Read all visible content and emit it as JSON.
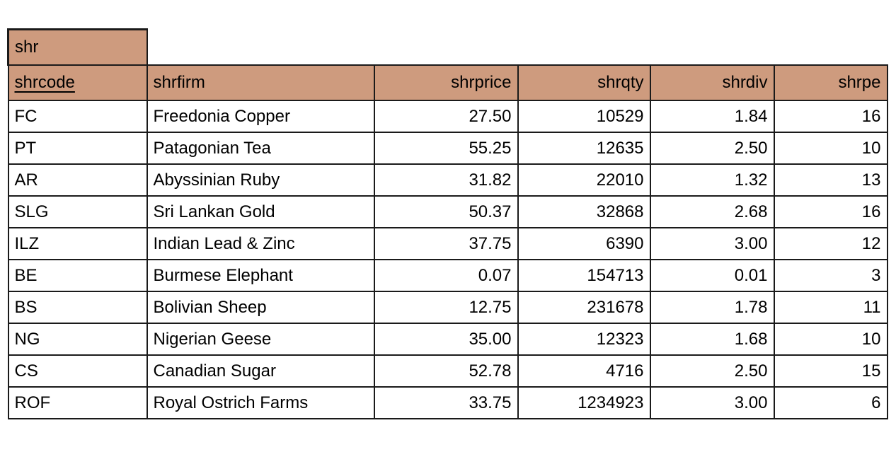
{
  "table": {
    "name": "shr",
    "header_fill": "#ce9b7e",
    "border_color": "#1a1a1a",
    "columns": [
      {
        "key": "shrcode",
        "label": "shrcode",
        "align": "left",
        "primary_key": true
      },
      {
        "key": "shrfirm",
        "label": "shrfirm",
        "align": "left",
        "primary_key": false
      },
      {
        "key": "shrprice",
        "label": "shrprice",
        "align": "right",
        "primary_key": false
      },
      {
        "key": "shrqty",
        "label": "shrqty",
        "align": "right",
        "primary_key": false
      },
      {
        "key": "shrdiv",
        "label": "shrdiv",
        "align": "right",
        "primary_key": false
      },
      {
        "key": "shrpe",
        "label": "shrpe",
        "align": "right",
        "primary_key": false
      }
    ],
    "rows": [
      {
        "shrcode": "FC",
        "shrfirm": "Freedonia Copper",
        "shrprice": "27.50",
        "shrqty": "10529",
        "shrdiv": "1.84",
        "shrpe": "16"
      },
      {
        "shrcode": "PT",
        "shrfirm": "Patagonian Tea",
        "shrprice": "55.25",
        "shrqty": "12635",
        "shrdiv": "2.50",
        "shrpe": "10"
      },
      {
        "shrcode": "AR",
        "shrfirm": "Abyssinian Ruby",
        "shrprice": "31.82",
        "shrqty": "22010",
        "shrdiv": "1.32",
        "shrpe": "13"
      },
      {
        "shrcode": "SLG",
        "shrfirm": "Sri Lankan Gold",
        "shrprice": "50.37",
        "shrqty": "32868",
        "shrdiv": "2.68",
        "shrpe": "16"
      },
      {
        "shrcode": "ILZ",
        "shrfirm": "Indian Lead & Zinc",
        "shrprice": "37.75",
        "shrqty": "6390",
        "shrdiv": "3.00",
        "shrpe": "12"
      },
      {
        "shrcode": "BE",
        "shrfirm": "Burmese Elephant",
        "shrprice": "0.07",
        "shrqty": "154713",
        "shrdiv": "0.01",
        "shrpe": "3"
      },
      {
        "shrcode": "BS",
        "shrfirm": "Bolivian Sheep",
        "shrprice": "12.75",
        "shrqty": "231678",
        "shrdiv": "1.78",
        "shrpe": "11"
      },
      {
        "shrcode": "NG",
        "shrfirm": "Nigerian Geese",
        "shrprice": "35.00",
        "shrqty": "12323",
        "shrdiv": "1.68",
        "shrpe": "10"
      },
      {
        "shrcode": "CS",
        "shrfirm": "Canadian Sugar",
        "shrprice": "52.78",
        "shrqty": "4716",
        "shrdiv": "2.50",
        "shrpe": "15"
      },
      {
        "shrcode": "ROF",
        "shrfirm": "Royal Ostrich Farms",
        "shrprice": "33.75",
        "shrqty": "1234923",
        "shrdiv": "3.00",
        "shrpe": "6"
      }
    ]
  },
  "chart_data": {
    "type": "table",
    "title": "shr",
    "columns": [
      "shrcode",
      "shrfirm",
      "shrprice",
      "shrqty",
      "shrdiv",
      "shrpe"
    ],
    "rows": [
      [
        "FC",
        "Freedonia Copper",
        27.5,
        10529,
        1.84,
        16
      ],
      [
        "PT",
        "Patagonian Tea",
        55.25,
        12635,
        2.5,
        10
      ],
      [
        "AR",
        "Abyssinian Ruby",
        31.82,
        22010,
        1.32,
        13
      ],
      [
        "SLG",
        "Sri Lankan Gold",
        50.37,
        32868,
        2.68,
        16
      ],
      [
        "ILZ",
        "Indian Lead & Zinc",
        37.75,
        6390,
        3.0,
        12
      ],
      [
        "BE",
        "Burmese Elephant",
        0.07,
        154713,
        0.01,
        3
      ],
      [
        "BS",
        "Bolivian Sheep",
        12.75,
        231678,
        1.78,
        11
      ],
      [
        "NG",
        "Nigerian Geese",
        35.0,
        12323,
        1.68,
        10
      ],
      [
        "CS",
        "Canadian Sugar",
        52.78,
        4716,
        2.5,
        15
      ],
      [
        "ROF",
        "Royal Ostrich Farms",
        33.75,
        1234923,
        3.0,
        6
      ]
    ]
  }
}
